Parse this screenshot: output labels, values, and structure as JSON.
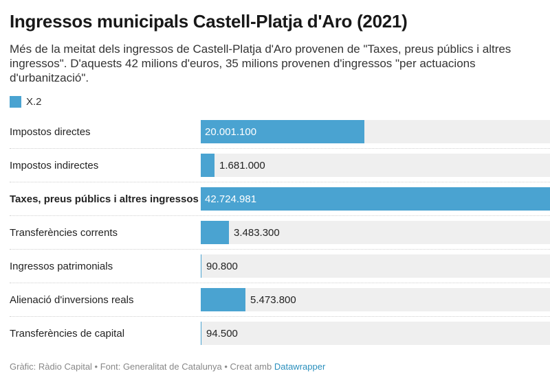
{
  "header": {
    "title": "Ingressos municipals Castell-Platja d'Aro (2021)",
    "subtitle": "Més de la meitat dels ingressos de Castell-Platja d'Aro provenen de \"Taxes, preus públics i altres ingressos\". D'aquests 42 milions d'euros, 35 milions provenen d'ingressos \"per actuacions d'urbanització\"."
  },
  "colors": {
    "bar": "#4aa3d1",
    "track": "#efefef",
    "label_inside": "#ffffff",
    "label_outside": "#222222"
  },
  "chart_data": {
    "type": "bar",
    "orientation": "horizontal",
    "legend": {
      "position": "top-left",
      "entries": [
        "X.2"
      ]
    },
    "categories": [
      "Impostos directes",
      "Impostos indirectes",
      "Taxes, preus públics i altres ingressos",
      "Transferències corrents",
      "Ingressos patrimonials",
      "Alienació d'inversions reals",
      "Transferències de capital"
    ],
    "highlighted": [
      "Taxes, preus públics i altres ingressos"
    ],
    "series": [
      {
        "name": "X.2",
        "values": [
          20001100,
          1681000,
          42724981,
          3483300,
          90800,
          5473800,
          94500
        ],
        "labels": [
          "20.001.100",
          "1.681.000",
          "42.724.981",
          "3.483.300",
          "90.800",
          "5.473.800",
          "94.500"
        ]
      }
    ],
    "xlim": [
      0,
      42724981
    ]
  },
  "footer": {
    "credit": "Gràfic: Ràdio Capital • Font: Generalitat de Catalunya • Creat amb ",
    "link": "Datawrapper"
  }
}
